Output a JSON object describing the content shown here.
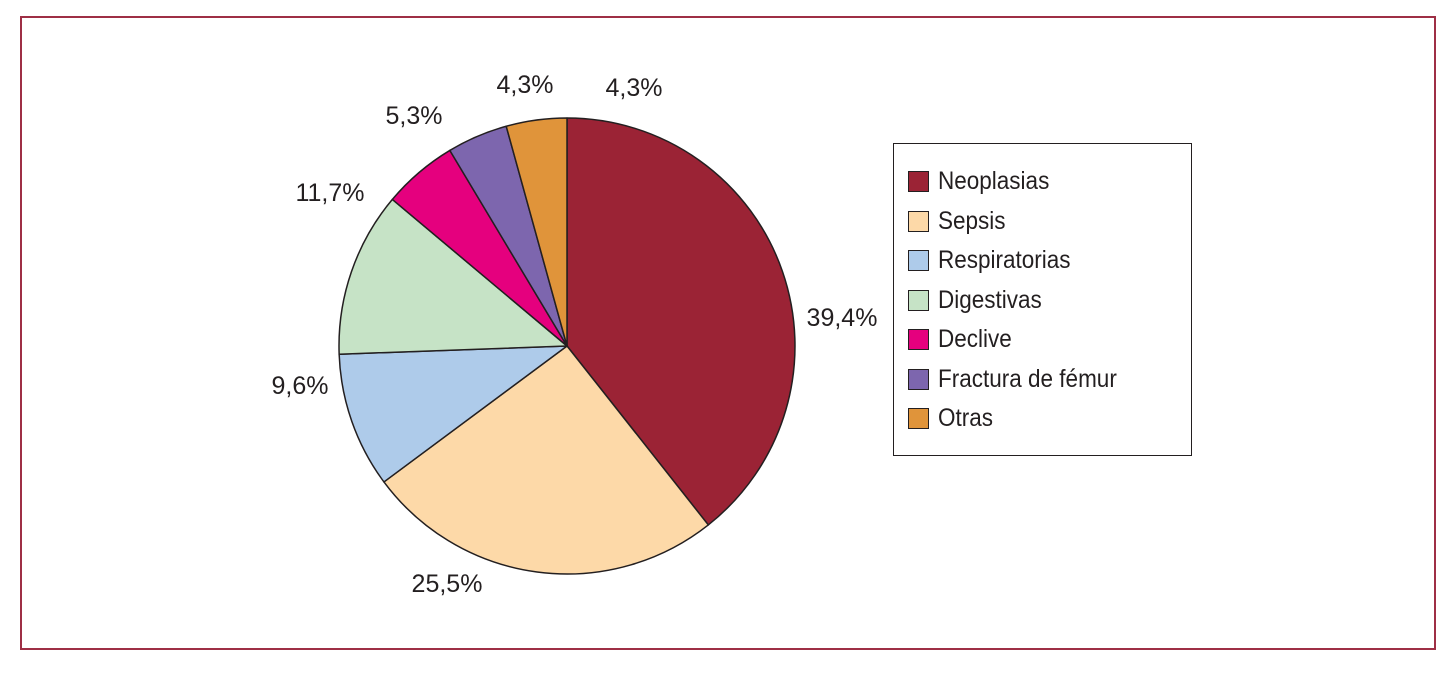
{
  "chart_data": {
    "type": "pie",
    "title": "",
    "start": "top-clockwise",
    "legend_position": "right",
    "slices": [
      {
        "label": "Neoplasias",
        "value": 39.4,
        "display": "39,4%",
        "color": "#9b2335"
      },
      {
        "label": "Sepsis",
        "value": 25.5,
        "display": "25,5%",
        "color": "#fdd9a8"
      },
      {
        "label": "Respiratorias",
        "value": 9.6,
        "display": "9,6%",
        "color": "#aecbea"
      },
      {
        "label": "Digestivas",
        "value": 11.7,
        "display": "11,7%",
        "color": "#c6e3c6"
      },
      {
        "label": "Declive",
        "value": 5.3,
        "display": "5,3%",
        "color": "#e5007e"
      },
      {
        "label": "Fractura de fémur",
        "value": 4.3,
        "display": "4,3%",
        "color": "#7d66ae"
      },
      {
        "label": "Otras",
        "value": 4.3,
        "display": "4,3%",
        "color": "#e0943a"
      }
    ]
  }
}
